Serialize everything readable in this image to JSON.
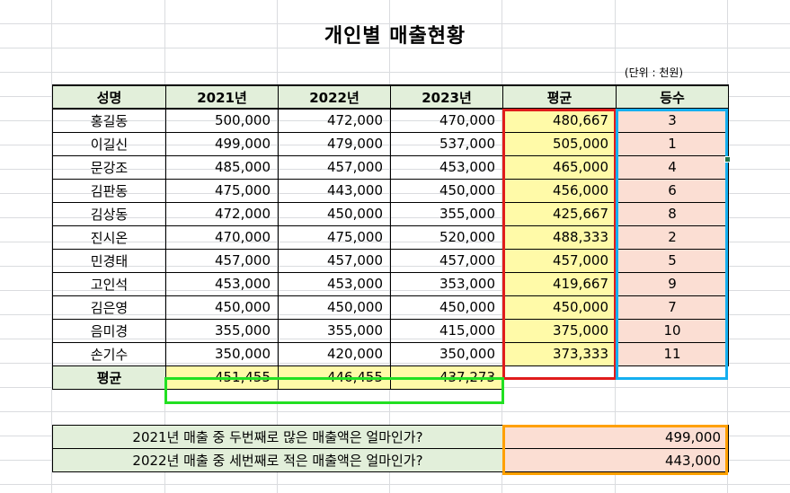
{
  "title": "개인별 매출현황",
  "unit_note": "(단위 : 천원)",
  "table": {
    "headers": [
      "성명",
      "2021년",
      "2022년",
      "2023년",
      "평균",
      "등수"
    ],
    "rows": [
      {
        "name": "홍길동",
        "y2021": "500,000",
        "y2022": "472,000",
        "y2023": "470,000",
        "avg": "480,667",
        "rank": "3"
      },
      {
        "name": "이길신",
        "y2021": "499,000",
        "y2022": "479,000",
        "y2023": "537,000",
        "avg": "505,000",
        "rank": "1"
      },
      {
        "name": "문강조",
        "y2021": "485,000",
        "y2022": "457,000",
        "y2023": "453,000",
        "avg": "465,000",
        "rank": "4"
      },
      {
        "name": "김판동",
        "y2021": "475,000",
        "y2022": "443,000",
        "y2023": "450,000",
        "avg": "456,000",
        "rank": "6"
      },
      {
        "name": "김상동",
        "y2021": "472,000",
        "y2022": "450,000",
        "y2023": "355,000",
        "avg": "425,667",
        "rank": "8"
      },
      {
        "name": "진시온",
        "y2021": "470,000",
        "y2022": "475,000",
        "y2023": "520,000",
        "avg": "488,333",
        "rank": "2"
      },
      {
        "name": "민경태",
        "y2021": "457,000",
        "y2022": "457,000",
        "y2023": "457,000",
        "avg": "457,000",
        "rank": "5"
      },
      {
        "name": "고인석",
        "y2021": "453,000",
        "y2022": "453,000",
        "y2023": "353,000",
        "avg": "419,667",
        "rank": "9"
      },
      {
        "name": "김은영",
        "y2021": "450,000",
        "y2022": "450,000",
        "y2023": "450,000",
        "avg": "450,000",
        "rank": "7"
      },
      {
        "name": "음미경",
        "y2021": "355,000",
        "y2022": "355,000",
        "y2023": "415,000",
        "avg": "375,000",
        "rank": "10"
      },
      {
        "name": "손기수",
        "y2021": "350,000",
        "y2022": "420,000",
        "y2023": "350,000",
        "avg": "373,333",
        "rank": "11"
      }
    ],
    "footer": {
      "label": "평균",
      "y2021": "451,455",
      "y2022": "446,455",
      "y2023": "437,273"
    }
  },
  "questions": [
    {
      "question": "2021년 매출 중 두번째로 많은 매출액은 얼마인가?",
      "answer": "499,000"
    },
    {
      "question": "2022년 매출 중 세번째로 적은 매출액은 얼마인가?",
      "answer": "443,000"
    }
  ],
  "colors": {
    "header_fill": "#e2efda",
    "average_fill": "#fffaa8",
    "rank_fill": "#fbded3",
    "red_box": "#e01c1c",
    "blue_box": "#14aff0",
    "green_box": "#22e022",
    "orange_box": "#ffa000"
  }
}
